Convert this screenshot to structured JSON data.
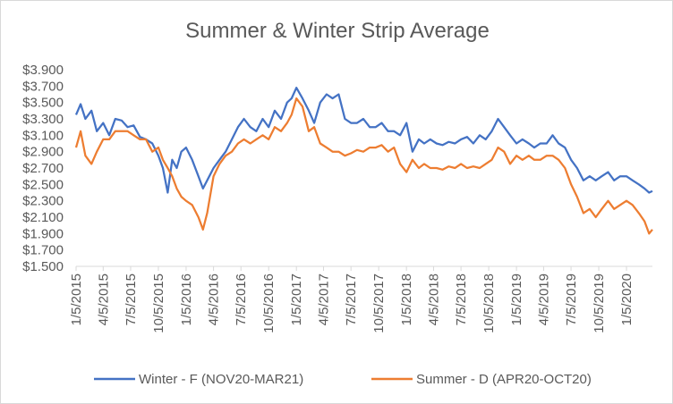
{
  "chart_data": {
    "type": "line",
    "title": "Summer & Winter Strip Average",
    "xlabel": "",
    "ylabel": "",
    "ylim": [
      1.5,
      3.9
    ],
    "xlim": [
      "2015-01-05",
      "2020-03-31"
    ],
    "grid": false,
    "legend_position": "bottom",
    "y_ticks": [
      "$3.900",
      "$3.700",
      "$3.500",
      "$3.300",
      "$3.100",
      "$2.900",
      "$2.700",
      "$2.500",
      "$2.300",
      "$2.100",
      "$1.900",
      "$1.700",
      "$1.500"
    ],
    "x_ticks": [
      "1/5/2015",
      "4/5/2015",
      "7/5/2015",
      "10/5/2015",
      "1/5/2016",
      "4/5/2016",
      "7/5/2016",
      "10/5/2016",
      "1/5/2017",
      "4/5/2017",
      "7/5/2017",
      "10/5/2017",
      "1/5/2018",
      "4/5/2018",
      "7/5/2018",
      "10/5/2018",
      "1/5/2019",
      "4/5/2019",
      "7/5/2019",
      "10/5/2019",
      "1/5/2020"
    ],
    "series": [
      {
        "name": "Winter - F (NOV20-MAR21)",
        "color": "#4472C4",
        "x": [
          "2015-01-05",
          "2015-01-20",
          "2015-02-05",
          "2015-02-25",
          "2015-03-15",
          "2015-04-05",
          "2015-04-25",
          "2015-05-15",
          "2015-06-05",
          "2015-06-25",
          "2015-07-15",
          "2015-08-05",
          "2015-08-25",
          "2015-09-15",
          "2015-10-05",
          "2015-10-20",
          "2015-11-05",
          "2015-11-20",
          "2015-12-05",
          "2015-12-20",
          "2016-01-05",
          "2016-01-25",
          "2016-02-15",
          "2016-03-01",
          "2016-03-15",
          "2016-04-05",
          "2016-04-25",
          "2016-05-15",
          "2016-06-05",
          "2016-06-25",
          "2016-07-15",
          "2016-08-05",
          "2016-08-25",
          "2016-09-15",
          "2016-10-05",
          "2016-10-25",
          "2016-11-15",
          "2016-12-05",
          "2016-12-20",
          "2017-01-05",
          "2017-01-25",
          "2017-02-15",
          "2017-03-05",
          "2017-03-25",
          "2017-04-15",
          "2017-05-05",
          "2017-05-25",
          "2017-06-15",
          "2017-07-05",
          "2017-07-25",
          "2017-08-15",
          "2017-09-05",
          "2017-09-25",
          "2017-10-15",
          "2017-11-05",
          "2017-11-25",
          "2017-12-15",
          "2018-01-05",
          "2018-01-25",
          "2018-02-15",
          "2018-03-05",
          "2018-03-25",
          "2018-04-15",
          "2018-05-05",
          "2018-05-25",
          "2018-06-15",
          "2018-07-05",
          "2018-07-25",
          "2018-08-15",
          "2018-09-05",
          "2018-09-25",
          "2018-10-15",
          "2018-11-05",
          "2018-11-25",
          "2018-12-15",
          "2019-01-05",
          "2019-01-25",
          "2019-02-15",
          "2019-03-05",
          "2019-03-25",
          "2019-04-15",
          "2019-05-05",
          "2019-05-25",
          "2019-06-15",
          "2019-07-05",
          "2019-07-25",
          "2019-08-15",
          "2019-09-05",
          "2019-09-25",
          "2019-10-15",
          "2019-11-05",
          "2019-11-25",
          "2019-12-15",
          "2020-01-05",
          "2020-01-25",
          "2020-02-15",
          "2020-03-05",
          "2020-03-20",
          "2020-03-31"
        ],
        "values": [
          3.35,
          3.48,
          3.3,
          3.4,
          3.15,
          3.25,
          3.1,
          3.3,
          3.28,
          3.2,
          3.22,
          3.08,
          3.05,
          3.0,
          2.85,
          2.7,
          2.4,
          2.8,
          2.7,
          2.9,
          2.95,
          2.8,
          2.6,
          2.45,
          2.55,
          2.7,
          2.8,
          2.9,
          3.05,
          3.2,
          3.3,
          3.2,
          3.15,
          3.3,
          3.2,
          3.4,
          3.3,
          3.5,
          3.55,
          3.68,
          3.55,
          3.4,
          3.25,
          3.5,
          3.6,
          3.55,
          3.6,
          3.3,
          3.25,
          3.25,
          3.3,
          3.2,
          3.2,
          3.25,
          3.15,
          3.15,
          3.1,
          3.25,
          2.9,
          3.05,
          3.0,
          3.05,
          3.0,
          2.98,
          3.02,
          3.0,
          3.05,
          3.08,
          3.0,
          3.1,
          3.05,
          3.15,
          3.3,
          3.2,
          3.1,
          3.0,
          3.05,
          3.0,
          2.95,
          3.0,
          3.0,
          3.1,
          3.0,
          2.95,
          2.8,
          2.7,
          2.55,
          2.6,
          2.55,
          2.6,
          2.65,
          2.55,
          2.6,
          2.6,
          2.55,
          2.5,
          2.45,
          2.4,
          2.42
        ]
      },
      {
        "name": "Summer - D (APR20-OCT20)",
        "color": "#ED7D31",
        "x": [
          "2015-01-05",
          "2015-01-20",
          "2015-02-05",
          "2015-02-25",
          "2015-03-15",
          "2015-04-05",
          "2015-04-25",
          "2015-05-15",
          "2015-06-05",
          "2015-06-25",
          "2015-07-15",
          "2015-08-05",
          "2015-08-25",
          "2015-09-15",
          "2015-10-05",
          "2015-10-20",
          "2015-11-05",
          "2015-11-20",
          "2015-12-05",
          "2015-12-20",
          "2016-01-05",
          "2016-01-25",
          "2016-02-15",
          "2016-03-01",
          "2016-03-15",
          "2016-04-05",
          "2016-04-25",
          "2016-05-15",
          "2016-06-05",
          "2016-06-25",
          "2016-07-15",
          "2016-08-05",
          "2016-08-25",
          "2016-09-15",
          "2016-10-05",
          "2016-10-25",
          "2016-11-15",
          "2016-12-05",
          "2016-12-20",
          "2017-01-05",
          "2017-01-25",
          "2017-02-15",
          "2017-03-05",
          "2017-03-25",
          "2017-04-15",
          "2017-05-05",
          "2017-05-25",
          "2017-06-15",
          "2017-07-05",
          "2017-07-25",
          "2017-08-15",
          "2017-09-05",
          "2017-09-25",
          "2017-10-15",
          "2017-11-05",
          "2017-11-25",
          "2017-12-15",
          "2018-01-05",
          "2018-01-25",
          "2018-02-15",
          "2018-03-05",
          "2018-03-25",
          "2018-04-15",
          "2018-05-05",
          "2018-05-25",
          "2018-06-15",
          "2018-07-05",
          "2018-07-25",
          "2018-08-15",
          "2018-09-05",
          "2018-09-25",
          "2018-10-15",
          "2018-11-05",
          "2018-11-25",
          "2018-12-15",
          "2019-01-05",
          "2019-01-25",
          "2019-02-15",
          "2019-03-05",
          "2019-03-25",
          "2019-04-15",
          "2019-05-05",
          "2019-05-25",
          "2019-06-15",
          "2019-07-05",
          "2019-07-25",
          "2019-08-15",
          "2019-09-05",
          "2019-09-25",
          "2019-10-15",
          "2019-11-05",
          "2019-11-25",
          "2019-12-15",
          "2020-01-05",
          "2020-01-25",
          "2020-02-15",
          "2020-03-05",
          "2020-03-20",
          "2020-03-31"
        ],
        "values": [
          2.95,
          3.15,
          2.85,
          2.75,
          2.9,
          3.05,
          3.05,
          3.15,
          3.15,
          3.15,
          3.1,
          3.05,
          3.05,
          2.9,
          2.95,
          2.8,
          2.7,
          2.6,
          2.45,
          2.35,
          2.3,
          2.25,
          2.1,
          1.95,
          2.15,
          2.6,
          2.75,
          2.85,
          2.9,
          3.0,
          3.05,
          3.0,
          3.05,
          3.1,
          3.05,
          3.2,
          3.15,
          3.25,
          3.35,
          3.55,
          3.45,
          3.15,
          3.2,
          3.0,
          2.95,
          2.9,
          2.9,
          2.85,
          2.88,
          2.92,
          2.9,
          2.95,
          2.95,
          2.98,
          2.9,
          2.95,
          2.75,
          2.65,
          2.8,
          2.7,
          2.75,
          2.7,
          2.7,
          2.68,
          2.72,
          2.7,
          2.75,
          2.7,
          2.72,
          2.7,
          2.75,
          2.8,
          2.95,
          2.9,
          2.75,
          2.85,
          2.8,
          2.85,
          2.8,
          2.8,
          2.85,
          2.85,
          2.8,
          2.7,
          2.5,
          2.35,
          2.15,
          2.2,
          2.1,
          2.2,
          2.3,
          2.2,
          2.25,
          2.3,
          2.25,
          2.15,
          2.05,
          1.9,
          1.95
        ]
      }
    ]
  }
}
